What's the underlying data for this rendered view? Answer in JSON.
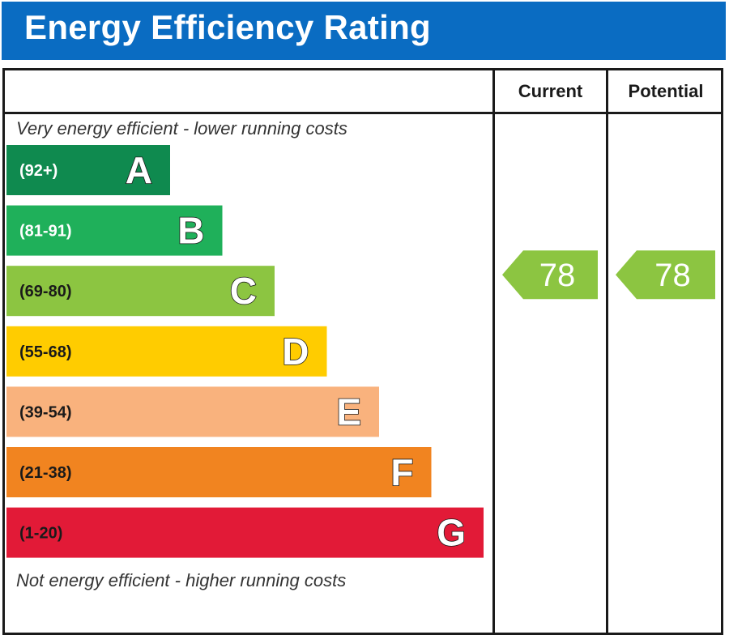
{
  "title": "Energy Efficiency Rating",
  "columns": {
    "current": "Current",
    "potential": "Potential"
  },
  "notes": {
    "top": "Very energy efficient - lower running costs",
    "bottom": "Not energy efficient - higher running costs"
  },
  "chart_data": {
    "type": "bar",
    "categories": [
      "A",
      "B",
      "C",
      "D",
      "E",
      "F",
      "G"
    ],
    "ranges": [
      "(92+)",
      "(81-91)",
      "(69-80)",
      "(55-68)",
      "(39-54)",
      "(21-38)",
      "(1-20)"
    ],
    "colors": [
      "#0f8a4f",
      "#1fb05a",
      "#8cc541",
      "#ffcc00",
      "#f9b27d",
      "#f18420",
      "#e21a37"
    ],
    "range_text_colors": [
      "#ffffff",
      "#ffffff",
      "#1a1a1a",
      "#1a1a1a",
      "#1a1a1a",
      "#1a1a1a",
      "#1a1a1a"
    ],
    "current": {
      "value": 78,
      "band": "C",
      "color": "#8cc541"
    },
    "potential": {
      "value": 78,
      "band": "C",
      "color": "#8cc541"
    }
  }
}
